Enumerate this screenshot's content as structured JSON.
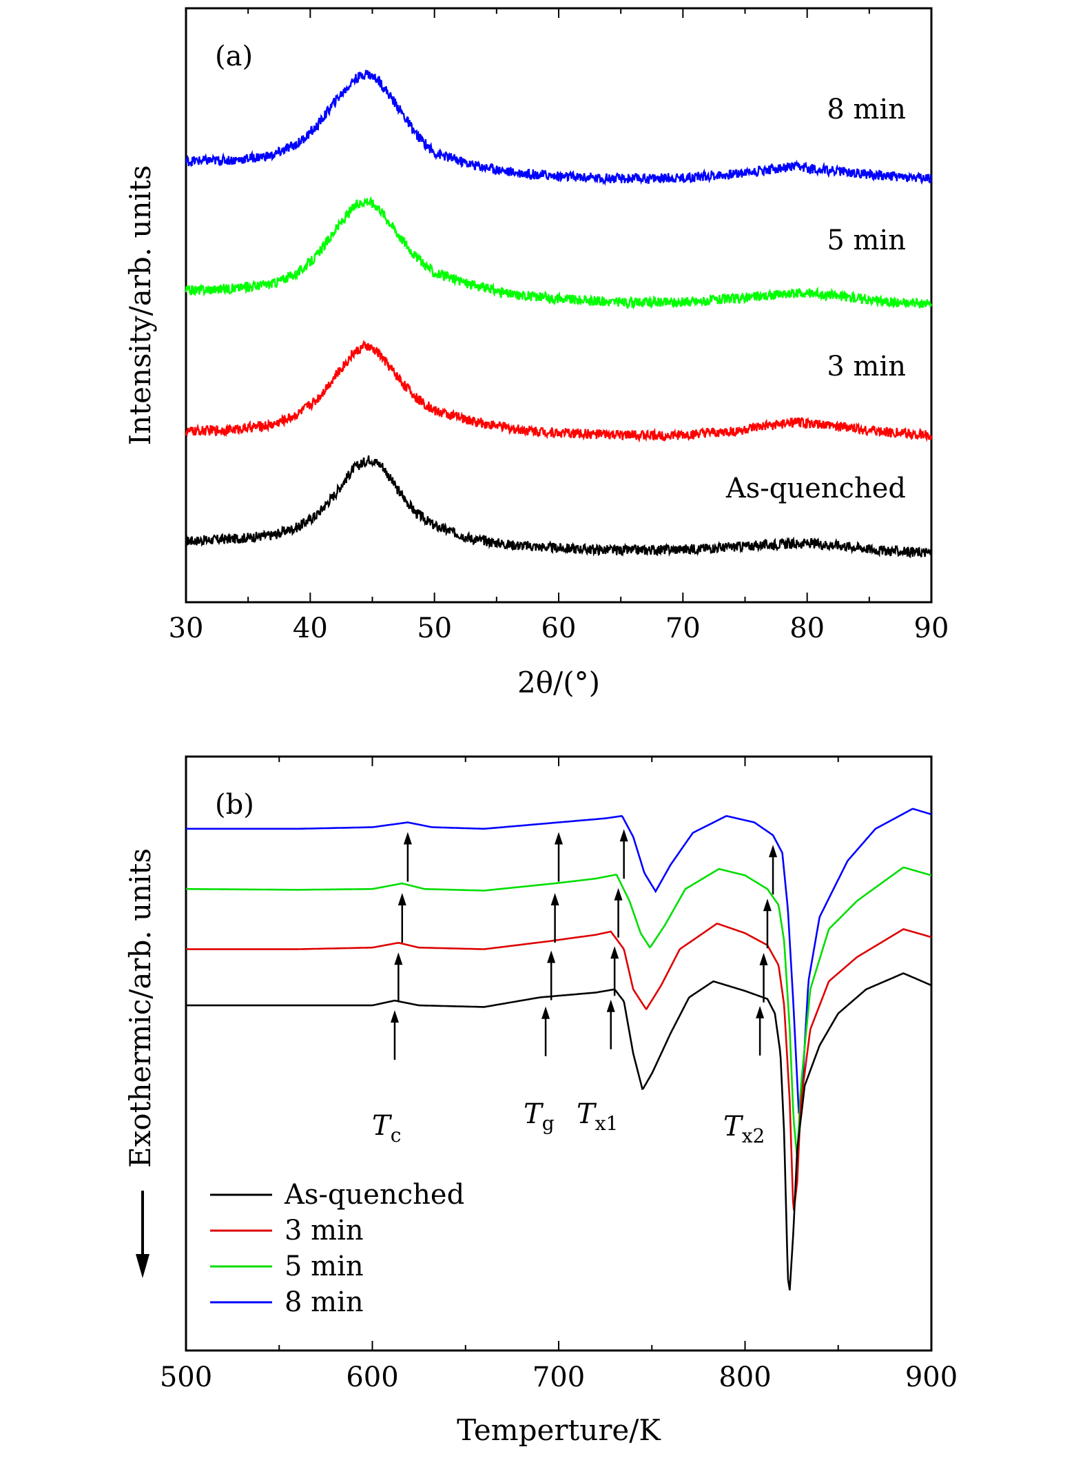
{
  "chart_data": [
    {
      "type": "line",
      "panel_label": "(a)",
      "xlabel": "2θ/(°)",
      "ylabel": "Intensity/arb. units",
      "xlim": [
        30,
        90
      ],
      "x_ticks": [
        "30",
        "40",
        "50",
        "60",
        "70",
        "80",
        "90"
      ],
      "y_ticks_labeled": false,
      "grid": false,
      "legend": "none (curve labels on right)",
      "series": [
        {
          "name": "As-quenched",
          "color": "#000000",
          "points": [
            [
              30,
              0.22
            ],
            [
              34,
              0.24
            ],
            [
              37,
              0.27
            ],
            [
              39,
              0.34
            ],
            [
              40.5,
              0.44
            ],
            [
              42,
              0.62
            ],
            [
              43.5,
              0.84
            ],
            [
              44.8,
              0.92
            ],
            [
              45.8,
              0.86
            ],
            [
              47,
              0.66
            ],
            [
              48.5,
              0.46
            ],
            [
              50,
              0.35
            ],
            [
              53,
              0.24
            ],
            [
              56,
              0.19
            ],
            [
              60,
              0.16
            ],
            [
              65,
              0.14
            ],
            [
              70,
              0.15
            ],
            [
              74,
              0.17
            ],
            [
              77,
              0.19
            ],
            [
              80,
              0.2
            ],
            [
              83,
              0.18
            ],
            [
              86,
              0.14
            ],
            [
              90,
              0.12
            ]
          ]
        },
        {
          "name": "3 min",
          "color": "#ff0000",
          "points": [
            [
              30,
              1.15
            ],
            [
              34,
              1.17
            ],
            [
              37,
              1.21
            ],
            [
              39,
              1.3
            ],
            [
              40.5,
              1.42
            ],
            [
              42,
              1.62
            ],
            [
              43.5,
              1.82
            ],
            [
              44.5,
              1.88
            ],
            [
              45.5,
              1.82
            ],
            [
              47,
              1.62
            ],
            [
              48.5,
              1.44
            ],
            [
              50,
              1.33
            ],
            [
              53,
              1.24
            ],
            [
              56,
              1.18
            ],
            [
              60,
              1.14
            ],
            [
              65,
              1.12
            ],
            [
              70,
              1.12
            ],
            [
              74,
              1.15
            ],
            [
              77,
              1.2
            ],
            [
              79,
              1.23
            ],
            [
              82,
              1.2
            ],
            [
              86,
              1.15
            ],
            [
              90,
              1.12
            ]
          ]
        },
        {
          "name": "5 min",
          "color": "#00ff00",
          "points": [
            [
              30,
              2.35
            ],
            [
              34,
              2.37
            ],
            [
              37,
              2.41
            ],
            [
              39,
              2.5
            ],
            [
              40.5,
              2.64
            ],
            [
              42,
              2.86
            ],
            [
              43.5,
              3.06
            ],
            [
              44.5,
              3.12
            ],
            [
              45.5,
              3.06
            ],
            [
              47,
              2.84
            ],
            [
              48.5,
              2.64
            ],
            [
              50,
              2.5
            ],
            [
              53,
              2.4
            ],
            [
              56,
              2.32
            ],
            [
              60,
              2.28
            ],
            [
              65,
              2.25
            ],
            [
              70,
              2.25
            ],
            [
              74,
              2.28
            ],
            [
              77,
              2.31
            ],
            [
              80,
              2.33
            ],
            [
              83,
              2.3
            ],
            [
              86,
              2.26
            ],
            [
              90,
              2.23
            ]
          ]
        },
        {
          "name": "8 min",
          "color": "#0000ff",
          "points": [
            [
              30,
              3.45
            ],
            [
              34,
              3.46
            ],
            [
              37,
              3.5
            ],
            [
              39,
              3.6
            ],
            [
              40.5,
              3.74
            ],
            [
              42,
              3.96
            ],
            [
              43.5,
              4.14
            ],
            [
              44.5,
              4.2
            ],
            [
              45.5,
              4.14
            ],
            [
              47,
              3.92
            ],
            [
              48.5,
              3.68
            ],
            [
              50,
              3.52
            ],
            [
              53,
              3.42
            ],
            [
              56,
              3.36
            ],
            [
              60,
              3.32
            ],
            [
              65,
              3.3
            ],
            [
              70,
              3.31
            ],
            [
              74,
              3.34
            ],
            [
              77,
              3.38
            ],
            [
              79,
              3.4
            ],
            [
              82,
              3.37
            ],
            [
              86,
              3.33
            ],
            [
              90,
              3.3
            ]
          ]
        }
      ],
      "curve_labels": [
        "8 min",
        "5 min",
        "3 min",
        "As-quenched"
      ]
    },
    {
      "type": "line",
      "panel_label": "(b)",
      "xlabel": "Temperture/K",
      "ylabel": "Exothermic/arb. units",
      "xlim": [
        500,
        900
      ],
      "x_ticks": [
        "500",
        "600",
        "700",
        "800",
        "900"
      ],
      "y_ticks_labeled": false,
      "grid": false,
      "legend": "bottom-left",
      "series": [
        {
          "name": "As-quenched",
          "color": "#000000",
          "points": [
            [
              500,
              0.0
            ],
            [
              560,
              0.0
            ],
            [
              600,
              0.0
            ],
            [
              612,
              0.06
            ],
            [
              625,
              0.0
            ],
            [
              660,
              -0.02
            ],
            [
              690,
              0.1
            ],
            [
              720,
              0.16
            ],
            [
              730,
              0.2
            ],
            [
              735,
              0.05
            ],
            [
              740,
              -0.6
            ],
            [
              745,
              -1.05
            ],
            [
              750,
              -0.85
            ],
            [
              760,
              -0.35
            ],
            [
              770,
              0.1
            ],
            [
              783,
              0.3
            ],
            [
              800,
              0.18
            ],
            [
              812,
              0.08
            ],
            [
              816,
              -0.1
            ],
            [
              819,
              -0.6
            ],
            [
              821,
              -1.6
            ],
            [
              823,
              -3.4
            ],
            [
              824,
              -3.55
            ],
            [
              826,
              -2.8
            ],
            [
              828,
              -1.8
            ],
            [
              832,
              -1.0
            ],
            [
              840,
              -0.5
            ],
            [
              850,
              -0.1
            ],
            [
              865,
              0.2
            ],
            [
              885,
              0.4
            ],
            [
              900,
              0.25
            ]
          ]
        },
        {
          "name": "3 min",
          "color": "#dd0000",
          "points": [
            [
              500,
              0.7
            ],
            [
              560,
              0.7
            ],
            [
              600,
              0.72
            ],
            [
              614,
              0.78
            ],
            [
              625,
              0.72
            ],
            [
              660,
              0.7
            ],
            [
              695,
              0.8
            ],
            [
              720,
              0.88
            ],
            [
              728,
              0.92
            ],
            [
              735,
              0.7
            ],
            [
              740,
              0.2
            ],
            [
              747,
              -0.05
            ],
            [
              755,
              0.25
            ],
            [
              765,
              0.7
            ],
            [
              785,
              1.02
            ],
            [
              800,
              0.9
            ],
            [
              812,
              0.75
            ],
            [
              818,
              0.5
            ],
            [
              821,
              0.0
            ],
            [
              824,
              -1.2
            ],
            [
              826,
              -2.6
            ],
            [
              828,
              -2.2
            ],
            [
              830,
              -1.2
            ],
            [
              835,
              -0.3
            ],
            [
              845,
              0.3
            ],
            [
              860,
              0.6
            ],
            [
              885,
              0.95
            ],
            [
              900,
              0.85
            ]
          ]
        },
        {
          "name": "5 min",
          "color": "#00dd00",
          "points": [
            [
              500,
              1.45
            ],
            [
              560,
              1.44
            ],
            [
              600,
              1.45
            ],
            [
              616,
              1.52
            ],
            [
              628,
              1.45
            ],
            [
              660,
              1.43
            ],
            [
              698,
              1.52
            ],
            [
              720,
              1.58
            ],
            [
              731,
              1.63
            ],
            [
              738,
              1.3
            ],
            [
              744,
              0.9
            ],
            [
              749,
              0.72
            ],
            [
              757,
              1.0
            ],
            [
              768,
              1.45
            ],
            [
              786,
              1.7
            ],
            [
              800,
              1.62
            ],
            [
              812,
              1.45
            ],
            [
              818,
              1.25
            ],
            [
              821,
              0.8
            ],
            [
              824,
              -0.3
            ],
            [
              826,
              -1.4
            ],
            [
              828,
              -1.9
            ],
            [
              830,
              -1.0
            ],
            [
              835,
              0.2
            ],
            [
              845,
              0.95
            ],
            [
              860,
              1.3
            ],
            [
              885,
              1.72
            ],
            [
              900,
              1.62
            ]
          ]
        },
        {
          "name": "8 min",
          "color": "#0000ff",
          "points": [
            [
              500,
              2.2
            ],
            [
              560,
              2.2
            ],
            [
              600,
              2.22
            ],
            [
              619,
              2.28
            ],
            [
              632,
              2.22
            ],
            [
              660,
              2.2
            ],
            [
              700,
              2.28
            ],
            [
              725,
              2.33
            ],
            [
              734,
              2.36
            ],
            [
              740,
              2.1
            ],
            [
              746,
              1.65
            ],
            [
              752,
              1.42
            ],
            [
              760,
              1.75
            ],
            [
              772,
              2.15
            ],
            [
              790,
              2.36
            ],
            [
              805,
              2.28
            ],
            [
              815,
              2.12
            ],
            [
              820,
              1.9
            ],
            [
              823,
              1.2
            ],
            [
              826,
              0.0
            ],
            [
              829,
              -1.4
            ],
            [
              831,
              -0.9
            ],
            [
              834,
              0.3
            ],
            [
              840,
              1.1
            ],
            [
              855,
              1.8
            ],
            [
              870,
              2.2
            ],
            [
              890,
              2.45
            ],
            [
              900,
              2.38
            ]
          ]
        }
      ],
      "legend_entries": [
        "As-quenched",
        "3 min",
        "5 min",
        "8 min"
      ],
      "annotations": [
        {
          "main": "T",
          "sub": "c"
        },
        {
          "main": "T",
          "sub": "g"
        },
        {
          "main": "T",
          "sub": "x1"
        },
        {
          "main": "T",
          "sub": "x2"
        }
      ],
      "arrow_series": [
        {
          "series": "As-quenched",
          "temps": [
            612,
            693,
            728,
            808
          ]
        },
        {
          "series": "3 min",
          "temps": [
            614,
            696,
            730,
            810
          ]
        },
        {
          "series": "5 min",
          "temps": [
            616,
            698,
            732,
            812
          ]
        },
        {
          "series": "8 min",
          "temps": [
            619,
            700,
            735,
            815
          ]
        }
      ]
    }
  ]
}
